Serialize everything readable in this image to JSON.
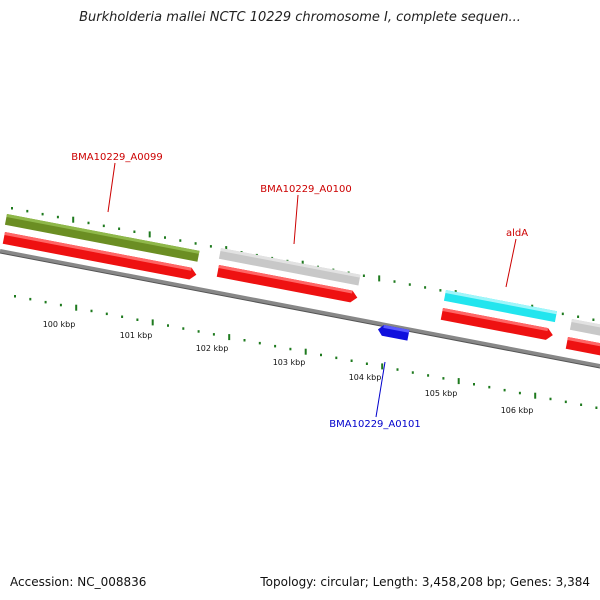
{
  "title": "Burkholderia mallei NCTC 10229 chromosome I, complete sequen...",
  "footer": {
    "accession": "Accession: NC_008836",
    "summary": "Topology: circular; Length: 3,458,208 bp; Genes: 3,384"
  },
  "colors": {
    "cds_forward": "#ee1111",
    "gene_olive": "#6b8e23",
    "gene_gray": "#c8c8c8",
    "gene_cyan": "#22e5ee",
    "cds_reverse": "#1010dd",
    "backbone": "#888888",
    "tick": "#1e7a1e",
    "label_red": "#cc0000",
    "label_blue": "#0000cc"
  },
  "gene_labels": [
    {
      "text": "BMA10229_A0099",
      "color": "red"
    },
    {
      "text": "BMA10229_A0100",
      "color": "red"
    },
    {
      "text": "aldA",
      "color": "red"
    },
    {
      "text": "BMA10229_A0101",
      "color": "blue"
    }
  ],
  "scale_labels": [
    "100 kbp",
    "101 kbp",
    "102 kbp",
    "103 kbp",
    "104 kbp",
    "105 kbp",
    "106 kbp"
  ]
}
